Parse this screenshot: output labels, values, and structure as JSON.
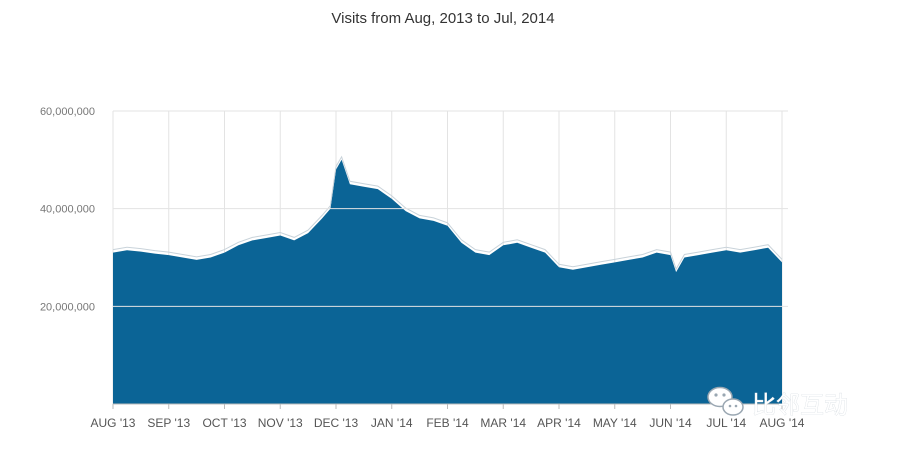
{
  "chart_data": {
    "type": "area",
    "title": "Visits from Aug, 2013 to Jul, 2014",
    "xlabel": "",
    "ylabel": "",
    "ylim": [
      0,
      60000000
    ],
    "yticks": [
      "60,000,000",
      "40,000,000",
      "20,000,000"
    ],
    "ytick_values": [
      60000000,
      40000000,
      20000000
    ],
    "xticks": [
      "AUG '13",
      "SEP '13",
      "OCT '13",
      "NOV '13",
      "DEC '13",
      "JAN '14",
      "FEB '14",
      "MAR '14",
      "APR '14",
      "MAY '14",
      "JUN '14",
      "JUL '14",
      "AUG '14"
    ],
    "grid": true,
    "legend": "none",
    "colors": {
      "area": "#0b6496",
      "outline": "#c9d3da",
      "grid": "#e3e3e3",
      "axis": "#bbbbbb"
    },
    "series": [
      {
        "x": [
          0,
          0.25,
          0.5,
          0.75,
          1,
          1.25,
          1.5,
          1.75,
          2,
          2.25,
          2.5,
          2.75,
          3,
          3.25,
          3.5,
          3.75,
          3.9,
          4,
          4.1,
          4.25,
          4.5,
          4.75,
          5,
          5.25,
          5.5,
          5.75,
          6,
          6.25,
          6.5,
          6.75,
          7,
          7.25,
          7.5,
          7.75,
          8,
          8.25,
          8.5,
          8.75,
          9,
          9.25,
          9.5,
          9.75,
          10,
          10.1,
          10.25,
          10.5,
          10.75,
          11,
          11.25,
          11.5,
          11.75,
          12
        ],
        "values": [
          31000000,
          31500000,
          31200000,
          30800000,
          30500000,
          30000000,
          29500000,
          30000000,
          31000000,
          32500000,
          33500000,
          34000000,
          34500000,
          33500000,
          35000000,
          38000000,
          40000000,
          48000000,
          50000000,
          45000000,
          44500000,
          44000000,
          42000000,
          39500000,
          38000000,
          37500000,
          36500000,
          33000000,
          31000000,
          30500000,
          32500000,
          33000000,
          32000000,
          31000000,
          28000000,
          27500000,
          28000000,
          28500000,
          29000000,
          29500000,
          30000000,
          31000000,
          30500000,
          27000000,
          30000000,
          30500000,
          31000000,
          31500000,
          31000000,
          31500000,
          32000000,
          29000000
        ]
      }
    ]
  },
  "watermark": {
    "text": "比邻互动",
    "icon": "wechat-icon"
  }
}
